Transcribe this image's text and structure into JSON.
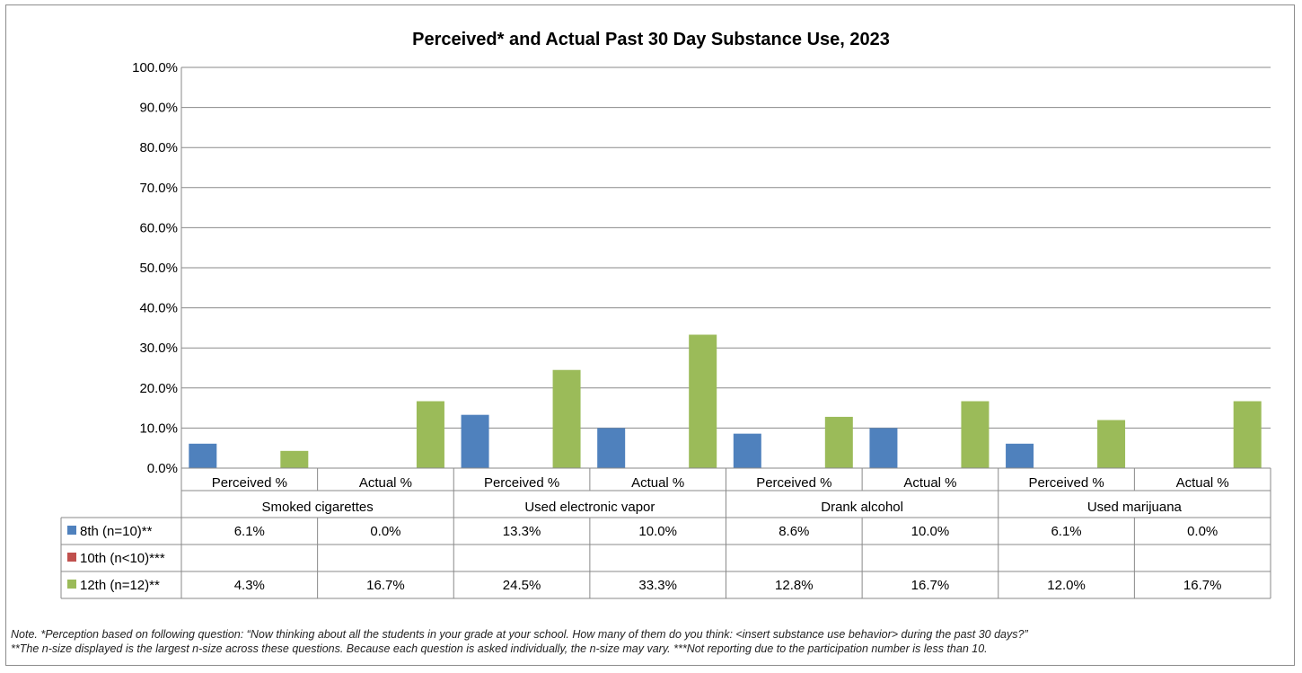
{
  "chart_data": {
    "type": "bar",
    "title": "Perceived* and Actual Past 30 Day Substance Use, 2023",
    "ylim": [
      0,
      100
    ],
    "y_ticks": [
      0,
      10,
      20,
      30,
      40,
      50,
      60,
      70,
      80,
      90,
      100
    ],
    "y_tick_labels": [
      "0.0%",
      "10.0%",
      "20.0%",
      "30.0%",
      "40.0%",
      "50.0%",
      "60.0%",
      "70.0%",
      "80.0%",
      "90.0%",
      "100.0%"
    ],
    "grid": true,
    "groups": [
      "Smoked cigarettes",
      "Used electronic vapor",
      "Drank alcohol",
      "Used marijuana"
    ],
    "subcategories": [
      "Perceived %",
      "Actual %"
    ],
    "categories": [
      "Smoked cigarettes | Perceived %",
      "Smoked cigarettes | Actual %",
      "Used electronic vapor | Perceived %",
      "Used electronic vapor | Actual %",
      "Drank alcohol | Perceived %",
      "Drank alcohol | Actual %",
      "Used marijuana | Perceived %",
      "Used marijuana | Actual %"
    ],
    "series": [
      {
        "name": "8th (n=10)**",
        "color": "#4f81bd",
        "values": [
          6.1,
          0.0,
          13.3,
          10.0,
          8.6,
          10.0,
          6.1,
          0.0
        ],
        "labels": [
          "6.1%",
          "0.0%",
          "13.3%",
          "10.0%",
          "8.6%",
          "10.0%",
          "6.1%",
          "0.0%"
        ]
      },
      {
        "name": "10th (n<10)***",
        "color": "#c0504d",
        "values": [
          null,
          null,
          null,
          null,
          null,
          null,
          null,
          null
        ],
        "labels": [
          "",
          "",
          "",
          "",
          "",
          "",
          "",
          ""
        ]
      },
      {
        "name": "12th (n=12)**",
        "color": "#9bbb59",
        "values": [
          4.3,
          16.7,
          24.5,
          33.3,
          12.8,
          16.7,
          12.0,
          16.7
        ],
        "labels": [
          "4.3%",
          "16.7%",
          "24.5%",
          "33.3%",
          "12.8%",
          "16.7%",
          "12.0%",
          "16.7%"
        ]
      }
    ]
  },
  "note": {
    "line1": "Note. *Perception based on following question: “Now thinking about all the students in your grade at your school. How many of them do you think: <insert substance use behavior> during the past 30 days?”",
    "line2": "**The n-size displayed is the largest n-size across these questions. Because each question is asked individually, the n-size may vary. ***Not reporting due to the participation number is less than 10."
  }
}
